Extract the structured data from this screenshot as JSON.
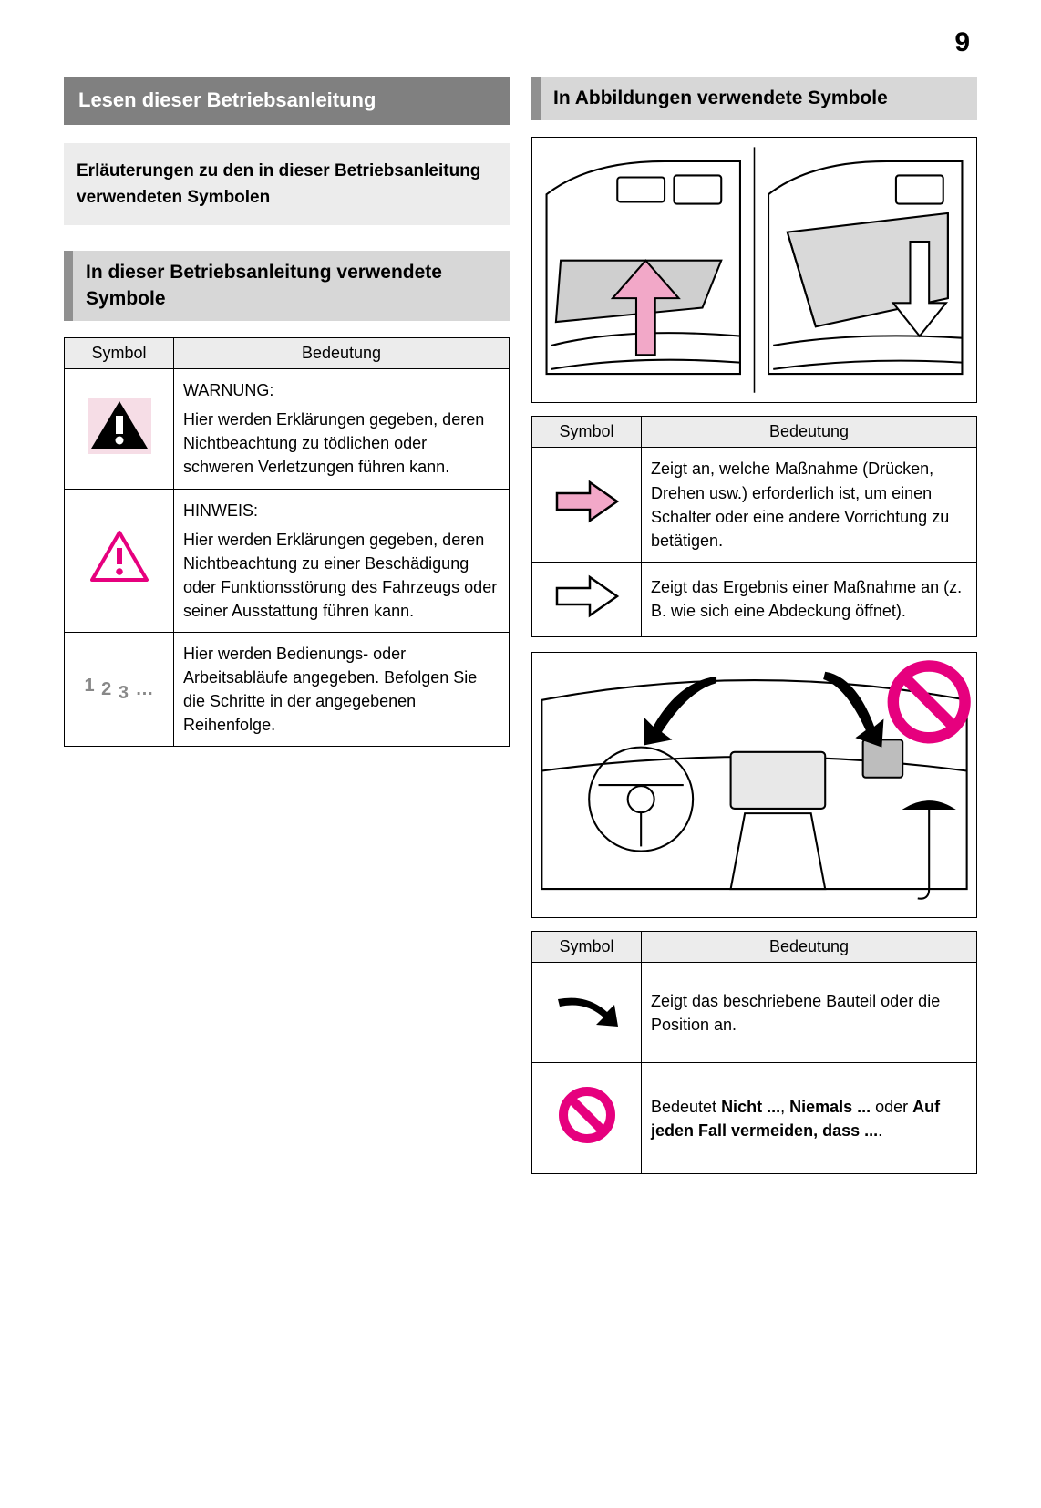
{
  "page_number": "9",
  "colors": {
    "dark_header_bg": "#808080",
    "dark_header_fg": "#ffffff",
    "light_box_bg": "#ececec",
    "sub_heading_bg": "#d7d7d7",
    "sub_heading_border": "#909090",
    "table_header_bg": "#ececec",
    "border": "#000000",
    "pink_fill": "#f2c2d6",
    "pink_stroke": "#e6007e",
    "grey_text": "#888888"
  },
  "left": {
    "main_heading": "Lesen dieser Betriebsanleitung",
    "intro": "Erläuterungen zu den in dieser Betriebsanleitung verwendeten Symbolen",
    "sub_heading": "In dieser Betriebsanleitung verwendete Symbole",
    "table": {
      "col_symbol": "Symbol",
      "col_meaning": "Bedeutung",
      "rows": [
        {
          "icon": "warning-triangle-black",
          "lead": "WARNUNG:",
          "body": "Hier werden Erklärungen gegeben, deren Nichtbeachtung zu tödlichen oder schweren Verletzungen führen kann."
        },
        {
          "icon": "warning-triangle-pink",
          "lead": "HINWEIS:",
          "body": "Hier werden Erklärungen gegeben, deren Nichtbeachtung zu einer Beschädigung oder Funktionsstörung des Fahrzeugs oder seiner Ausstattung führen kann."
        },
        {
          "icon": "steps-123",
          "lead": "",
          "body": "Hier werden Bedienungs- oder Arbeitsabläufe angegeben. Befolgen Sie die Schritte in der angegebenen Reihenfolge."
        }
      ]
    }
  },
  "right": {
    "main_heading": "In Abbildungen verwendete Symbole",
    "table1": {
      "col_symbol": "Symbol",
      "col_meaning": "Bedeutung",
      "rows": [
        {
          "icon": "arrow-right-pink",
          "body": "Zeigt an, welche Maßnahme (Drücken, Drehen usw.) erforderlich ist, um einen Schalter oder eine andere Vorrichtung zu betätigen."
        },
        {
          "icon": "arrow-right-outline",
          "body": "Zeigt das Ergebnis einer Maßnahme an (z. B. wie sich eine Abdeckung öffnet)."
        }
      ]
    },
    "table2": {
      "col_symbol": "Symbol",
      "col_meaning": "Bedeutung",
      "rows": [
        {
          "icon": "curved-black-arrow",
          "body": "Zeigt das beschriebene Bauteil oder die Position an."
        },
        {
          "icon": "prohibition-circle",
          "body_html": "Bedeutet <b>Nicht ...</b>, <b>Niemals ...</b> oder <b>Auf jeden Fall vermeiden, dass ...</b>."
        }
      ]
    }
  }
}
